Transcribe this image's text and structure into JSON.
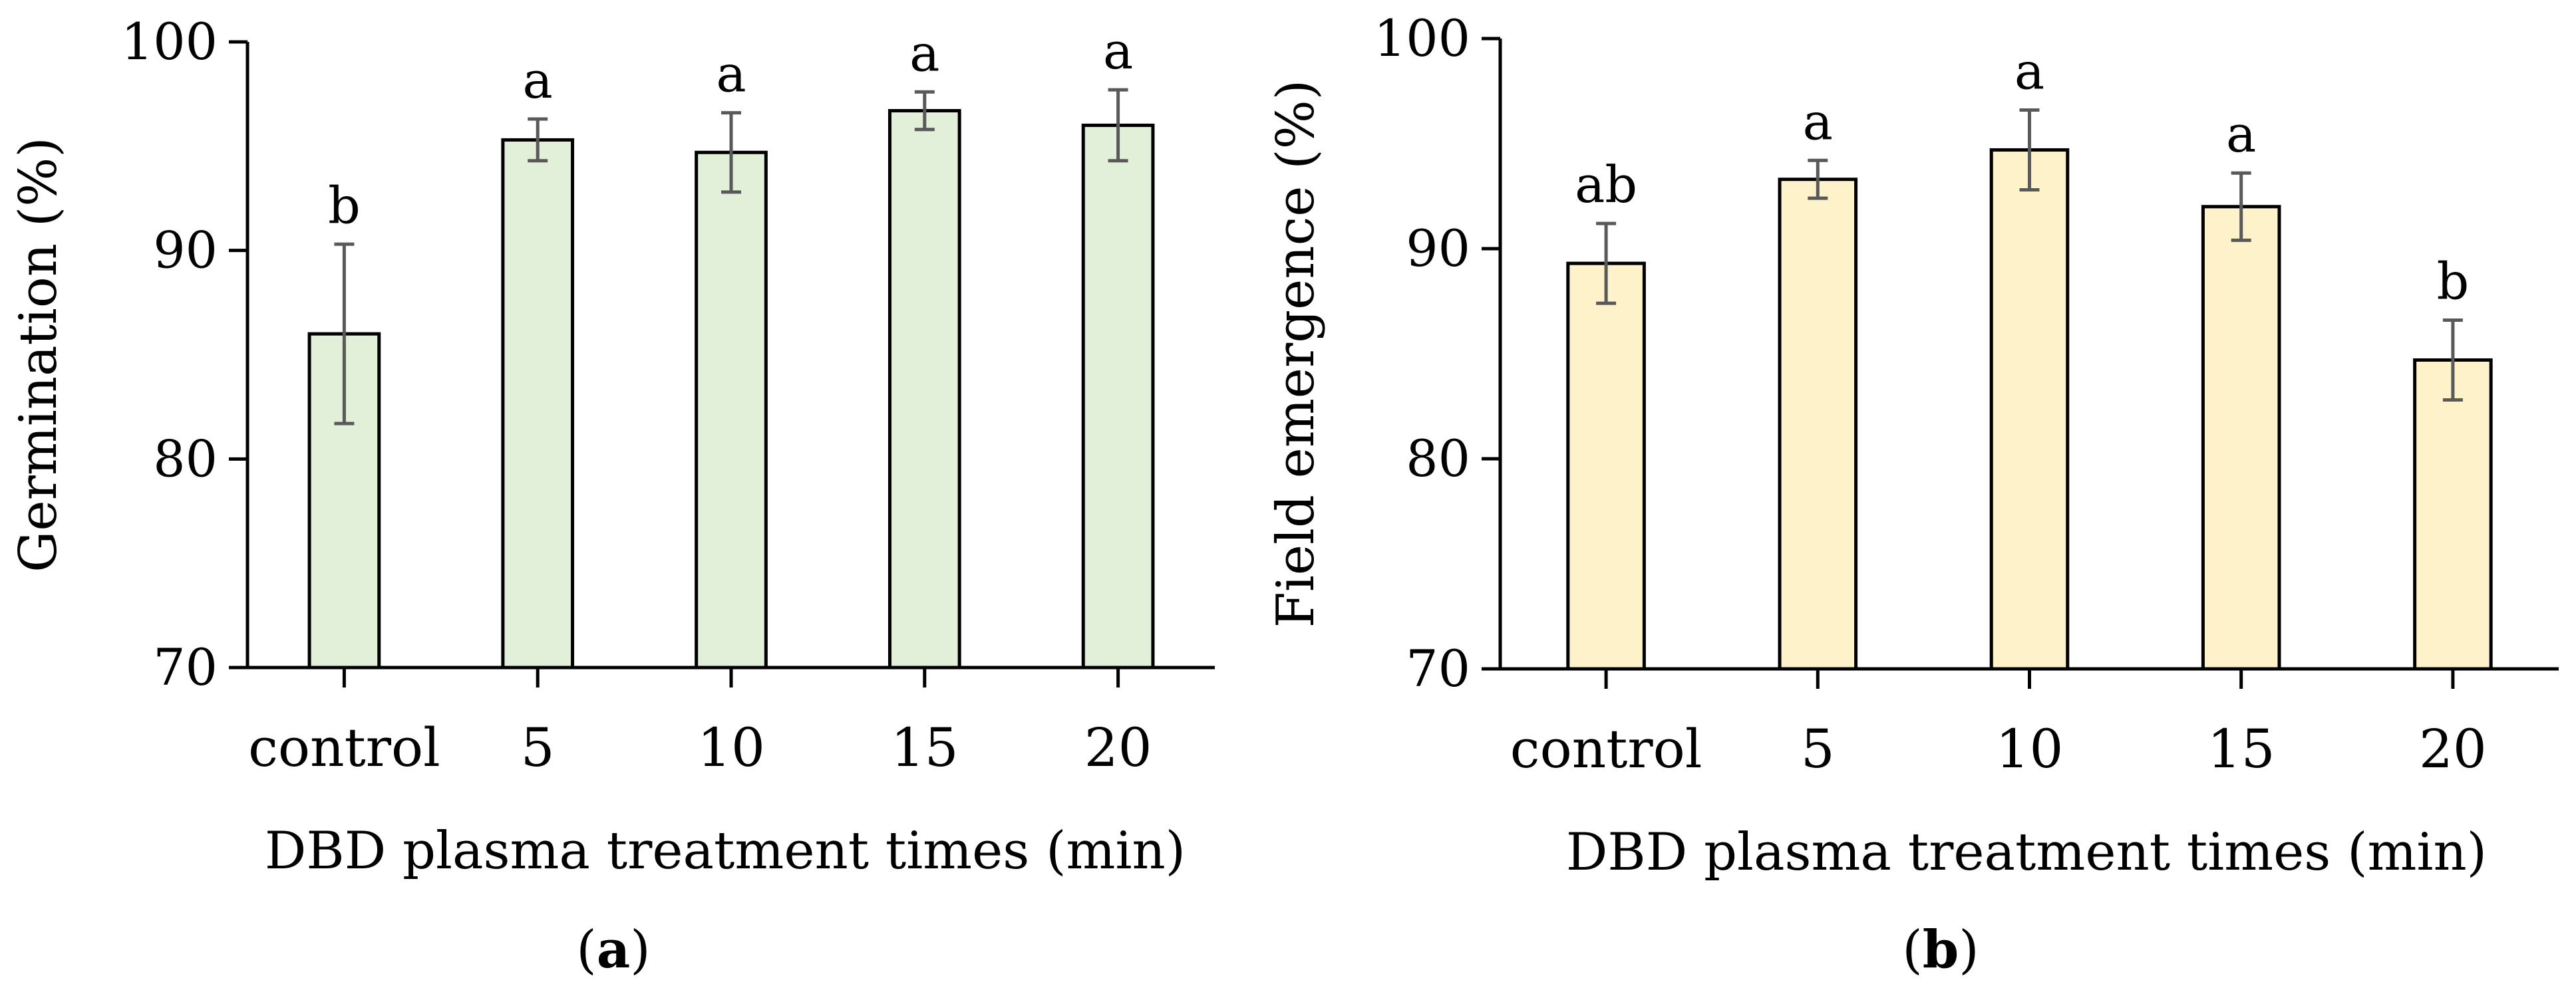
{
  "figure": {
    "panels": [
      {
        "open": "(",
        "letter": "a",
        "close": ")"
      },
      {
        "open": "(",
        "letter": "b",
        "close": ")"
      }
    ]
  },
  "chart_data": [
    {
      "type": "bar",
      "panel": "a",
      "title": "",
      "xlabel": "DBD plasma treatment times (min)",
      "ylabel": "Germination (%)",
      "categories": [
        "control",
        "5",
        "10",
        "15",
        "20"
      ],
      "values": [
        86.0,
        95.3,
        94.7,
        96.7,
        96.0
      ],
      "errors": [
        4.3,
        1.0,
        1.9,
        0.9,
        1.7
      ],
      "letters": [
        "b",
        "a",
        "a",
        "a",
        "a"
      ],
      "ylim": [
        70,
        100
      ],
      "yticks": [
        70,
        80,
        90,
        100
      ],
      "bar_fill": "#e2efd9",
      "bar_stroke": "#000000",
      "error_color": "#595959",
      "grid": false
    },
    {
      "type": "bar",
      "panel": "b",
      "title": "",
      "xlabel": "DBD plasma treatment times (min)",
      "ylabel": "Field emergence (%)",
      "categories": [
        "control",
        "5",
        "10",
        "15",
        "20"
      ],
      "values": [
        89.3,
        93.3,
        94.7,
        92.0,
        84.7
      ],
      "errors": [
        1.9,
        0.9,
        1.9,
        1.6,
        1.9
      ],
      "letters": [
        "ab",
        "a",
        "a",
        "a",
        "b"
      ],
      "ylim": [
        70,
        100
      ],
      "yticks": [
        70,
        80,
        90,
        100
      ],
      "bar_fill": "#fef2cb",
      "bar_stroke": "#000000",
      "error_color": "#595959",
      "grid": false
    }
  ]
}
